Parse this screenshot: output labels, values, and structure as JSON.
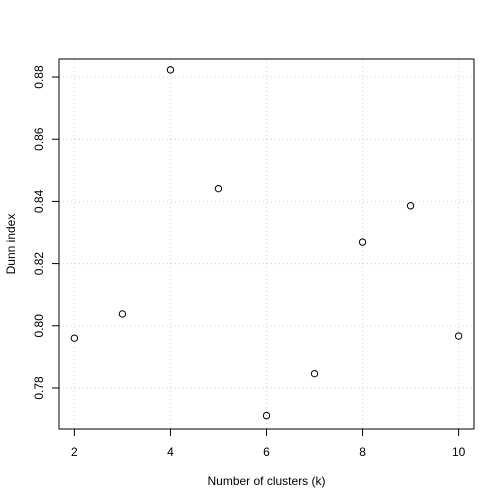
{
  "chart_data": {
    "type": "scatter",
    "xlabel": "Number of clusters (k)",
    "ylabel": "Dunn index",
    "xlim": [
      1.68,
      10.32
    ],
    "ylim": [
      0.7668,
      0.8858
    ],
    "x_ticks": [
      2,
      4,
      6,
      8,
      10
    ],
    "y_ticks": [
      0.78,
      0.8,
      0.82,
      0.84,
      0.86,
      0.88
    ],
    "x_tick_labels": [
      "2",
      "4",
      "6",
      "8",
      "10"
    ],
    "y_tick_labels": [
      "0.78",
      "0.80",
      "0.82",
      "0.84",
      "0.86",
      "0.88"
    ],
    "grid": true,
    "marker": "open-circle",
    "x": [
      2,
      3,
      4,
      5,
      6,
      7,
      8,
      9,
      10
    ],
    "y": [
      0.796,
      0.8038,
      0.8823,
      0.8441,
      0.7711,
      0.7846,
      0.8269,
      0.8386,
      0.7967
    ]
  }
}
